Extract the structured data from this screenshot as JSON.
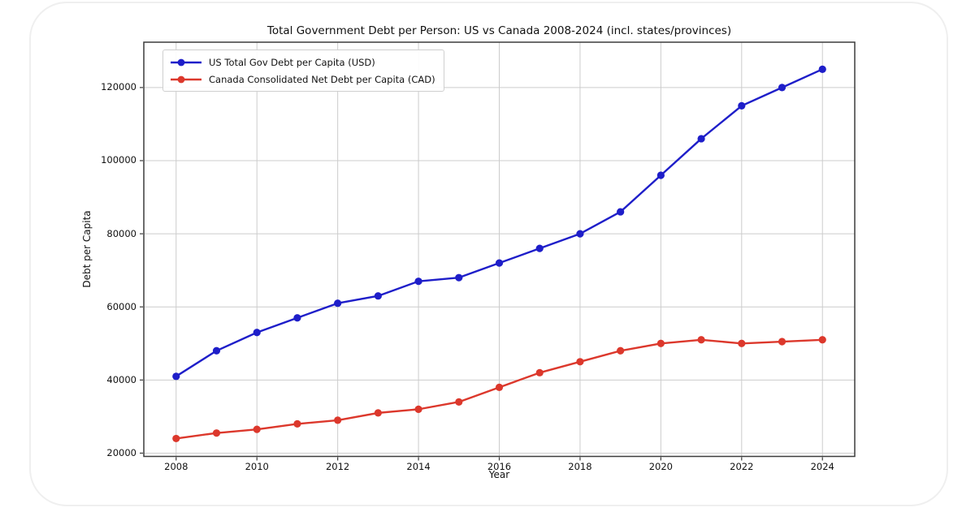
{
  "chart_data": {
    "type": "line",
    "title": "Total Government Debt per Person: US vs Canada 2008-2024 (incl. states/provinces)",
    "xlabel": "Year",
    "ylabel": "Debt per Capita",
    "x": [
      2008,
      2009,
      2010,
      2011,
      2012,
      2013,
      2014,
      2015,
      2016,
      2017,
      2018,
      2019,
      2020,
      2021,
      2022,
      2023,
      2024
    ],
    "series": [
      {
        "name": "US Total Gov Debt per Capita (USD)",
        "color": "#1e1ec9",
        "marker": "circle",
        "values": [
          41000,
          48000,
          53000,
          57000,
          61000,
          63000,
          67000,
          68000,
          72000,
          76000,
          80000,
          86000,
          96000,
          106000,
          115000,
          120000,
          125000
        ]
      },
      {
        "name": "Canada Consolidated Net Debt per Capita (CAD)",
        "color": "#dc382c",
        "marker": "circle",
        "values": [
          24000,
          25500,
          26500,
          28000,
          29000,
          31000,
          32000,
          34000,
          38000,
          42000,
          45000,
          48000,
          50000,
          51000,
          50000,
          50500,
          51000
        ]
      }
    ],
    "x_ticks": [
      2008,
      2010,
      2012,
      2014,
      2016,
      2018,
      2020,
      2022,
      2024
    ],
    "y_ticks": [
      20000,
      40000,
      60000,
      80000,
      100000,
      120000
    ],
    "xlim": [
      2007.2,
      2024.8
    ],
    "ylim": [
      19100,
      132400
    ],
    "grid": true,
    "legend_position": "upper left",
    "grid_color": "#cccccc",
    "spine_color": "#3c3c3c",
    "text_color": "#111111"
  }
}
